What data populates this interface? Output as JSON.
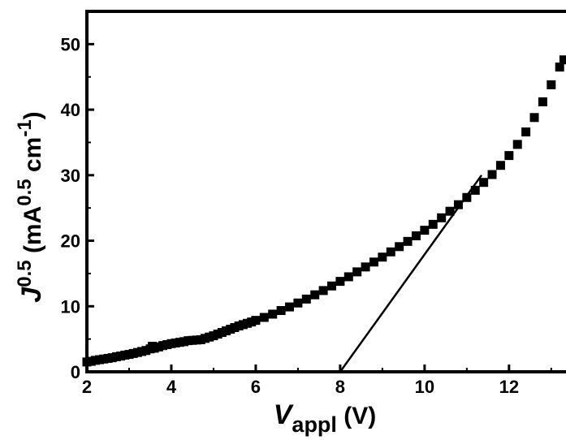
{
  "chart_data": {
    "type": "scatter",
    "title": "",
    "xlabel": {
      "main": "V",
      "sub": "appl",
      "unit": " (V)"
    },
    "ylabel": {
      "main": "J",
      "sup1": "0.5",
      "mid": " (mA",
      "sup2": "0.5",
      "tail": " cm",
      "sup3": "-1",
      "end": ")"
    },
    "xlim": [
      2,
      13.35
    ],
    "ylim": [
      0,
      55
    ],
    "xticks": [
      2,
      4,
      6,
      8,
      10,
      12
    ],
    "yticks": [
      0,
      10,
      20,
      30,
      40,
      50
    ],
    "grid": false,
    "legend": "none",
    "colors": {
      "marker": "#000000",
      "fit_line": "#000000",
      "axes": "#000000"
    },
    "series": [
      {
        "values": [
          [
            2.0,
            1.5
          ],
          [
            2.1,
            1.6
          ],
          [
            2.2,
            1.75
          ],
          [
            2.3,
            1.85
          ],
          [
            2.4,
            1.95
          ],
          [
            2.5,
            2.05
          ],
          [
            2.6,
            2.15
          ],
          [
            2.7,
            2.3
          ],
          [
            2.8,
            2.4
          ],
          [
            2.9,
            2.55
          ],
          [
            3.0,
            2.65
          ],
          [
            3.1,
            2.8
          ],
          [
            3.2,
            2.95
          ],
          [
            3.3,
            3.1
          ],
          [
            3.4,
            3.25
          ],
          [
            3.5,
            3.5
          ],
          [
            3.55,
            3.9
          ],
          [
            3.6,
            3.6
          ],
          [
            3.7,
            3.8
          ],
          [
            3.8,
            4.0
          ],
          [
            3.9,
            4.15
          ],
          [
            4.0,
            4.3
          ],
          [
            4.1,
            4.4
          ],
          [
            4.2,
            4.5
          ],
          [
            4.3,
            4.6
          ],
          [
            4.4,
            4.75
          ],
          [
            4.5,
            4.8
          ],
          [
            4.6,
            4.85
          ],
          [
            4.7,
            4.9
          ],
          [
            4.8,
            5.1
          ],
          [
            4.9,
            5.3
          ],
          [
            5.0,
            5.5
          ],
          [
            5.1,
            5.75
          ],
          [
            5.2,
            6.0
          ],
          [
            5.3,
            6.25
          ],
          [
            5.4,
            6.5
          ],
          [
            5.5,
            6.75
          ],
          [
            5.6,
            7.0
          ],
          [
            5.7,
            7.2
          ],
          [
            5.8,
            7.4
          ],
          [
            5.9,
            7.6
          ],
          [
            6.0,
            7.85
          ],
          [
            6.2,
            8.3
          ],
          [
            6.4,
            8.8
          ],
          [
            6.6,
            9.35
          ],
          [
            6.8,
            9.9
          ],
          [
            7.0,
            10.5
          ],
          [
            7.2,
            11.1
          ],
          [
            7.4,
            11.75
          ],
          [
            7.6,
            12.4
          ],
          [
            7.8,
            13.1
          ],
          [
            8.0,
            13.8
          ],
          [
            8.2,
            14.5
          ],
          [
            8.4,
            15.25
          ],
          [
            8.6,
            16.0
          ],
          [
            8.8,
            16.75
          ],
          [
            9.0,
            17.5
          ],
          [
            9.2,
            18.3
          ],
          [
            9.4,
            19.1
          ],
          [
            9.6,
            19.9
          ],
          [
            9.8,
            20.75
          ],
          [
            10.0,
            21.6
          ],
          [
            10.2,
            22.5
          ],
          [
            10.4,
            23.5
          ],
          [
            10.6,
            24.5
          ],
          [
            10.8,
            25.5
          ],
          [
            11.0,
            26.6
          ],
          [
            11.2,
            27.7
          ],
          [
            11.4,
            28.9
          ],
          [
            11.6,
            30.1
          ],
          [
            11.8,
            31.5
          ],
          [
            12.0,
            33.0
          ],
          [
            12.2,
            34.7
          ],
          [
            12.4,
            36.6
          ],
          [
            12.6,
            38.8
          ],
          [
            12.8,
            41.2
          ],
          [
            13.0,
            43.8
          ],
          [
            13.2,
            46.5
          ],
          [
            13.3,
            47.6
          ]
        ]
      }
    ],
    "fit_line": {
      "from": [
        8.0,
        0.0
      ],
      "to": [
        11.35,
        30.0
      ]
    }
  }
}
